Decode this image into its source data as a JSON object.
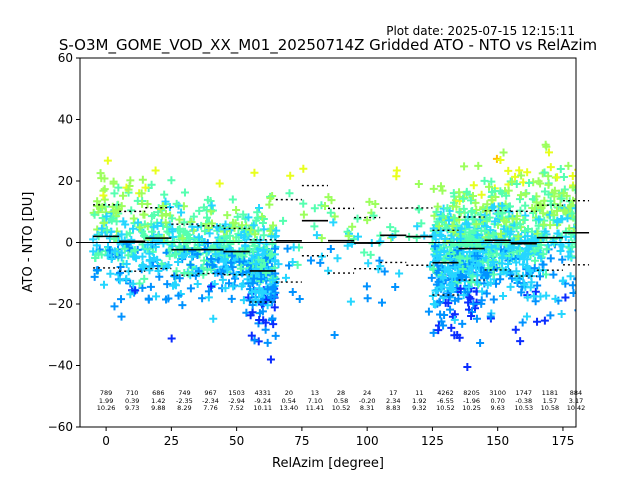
{
  "chart_data": {
    "type": "scatter",
    "plot_date_label": "Plot date: 2025-07-15 12:15:11",
    "title": "S-O3M_GOME_VOD_XX_M01_20250714Z Gridded ATO - NTO vs RelAzim",
    "xlabel": "RelAzim [degree]",
    "ylabel": "ATO - NTO [DU]",
    "xlim": [
      -10,
      180
    ],
    "ylim": [
      -60,
      60
    ],
    "xticks": [
      0,
      25,
      50,
      75,
      100,
      125,
      150,
      175
    ],
    "yticks": [
      -60,
      -40,
      -20,
      0,
      20,
      40,
      60
    ],
    "grid": false,
    "zero_line": 0,
    "colormap": [
      "#0a2cff",
      "#0092ff",
      "#25d6ff",
      "#55ffb0",
      "#9cff5c",
      "#e8ff1d",
      "#ffc300"
    ],
    "bins": [
      {
        "x": 0,
        "count": "789",
        "mean": "1.99",
        "std": "10.26"
      },
      {
        "x": 10,
        "count": "710",
        "mean": "0.39",
        "std": "9.73"
      },
      {
        "x": 20,
        "count": "686",
        "mean": "1.42",
        "std": "9.88"
      },
      {
        "x": 30,
        "count": "749",
        "mean": "-2.35",
        "std": "8.29"
      },
      {
        "x": 40,
        "count": "967",
        "mean": "-2.34",
        "std": "7.76"
      },
      {
        "x": 50,
        "count": "1503",
        "mean": "-2.94",
        "std": "7.52"
      },
      {
        "x": 60,
        "count": "4331",
        "mean": "-9.24",
        "std": "10.11"
      },
      {
        "x": 70,
        "count": "20",
        "mean": "0.54",
        "std": "13.40"
      },
      {
        "x": 80,
        "count": "13",
        "mean": "7.10",
        "std": "11.41"
      },
      {
        "x": 90,
        "count": "28",
        "mean": "0.58",
        "std": "10.52"
      },
      {
        "x": 100,
        "count": "24",
        "mean": "-0.20",
        "std": "8.31"
      },
      {
        "x": 110,
        "count": "17",
        "mean": "2.34",
        "std": "8.83"
      },
      {
        "x": 120,
        "count": "11",
        "mean": "1.92",
        "std": "9.32"
      },
      {
        "x": 130,
        "count": "4262",
        "mean": "-6.55",
        "std": "10.52"
      },
      {
        "x": 140,
        "count": "8205",
        "mean": "-1.96",
        "std": "10.25"
      },
      {
        "x": 150,
        "count": "3100",
        "mean": "0.70",
        "std": "9.63"
      },
      {
        "x": 160,
        "count": "1747",
        "mean": "-0.38",
        "std": "10.53"
      },
      {
        "x": 170,
        "count": "1181",
        "mean": "1.57",
        "std": "10.58"
      },
      {
        "x": 180,
        "count": "884",
        "mean": "3.17",
        "std": "10.42"
      }
    ]
  }
}
